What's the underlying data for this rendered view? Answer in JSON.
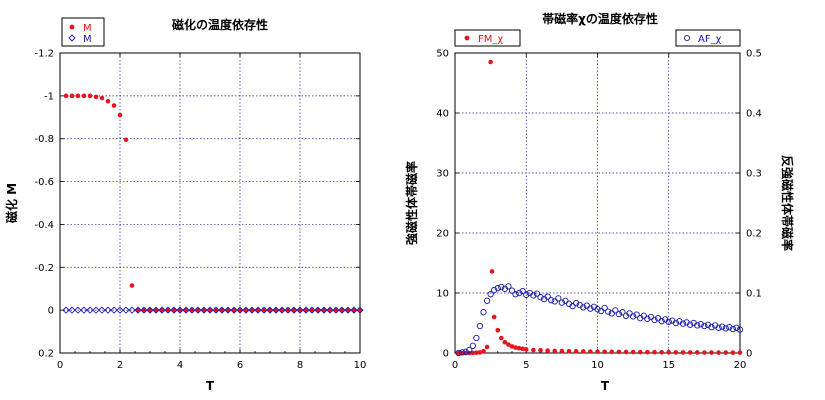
{
  "chart_data": [
    {
      "type": "scatter",
      "title": "磁化の温度依存性",
      "xlabel": "T",
      "ylabel": "磁化 M",
      "xlim": [
        0,
        10
      ],
      "ylim": [
        -1.2,
        0.2
      ],
      "y_inverted": true,
      "xticks": [
        "0",
        "2",
        "4",
        "6",
        "8",
        "10"
      ],
      "yticks": [
        "-1.2",
        "-1",
        "-0.8",
        "-0.6",
        "-0.4",
        "-0.2",
        "0",
        "0.2"
      ],
      "grid": true,
      "legend_position": "top-left",
      "series": [
        {
          "name": "M",
          "marker": "filled-circle",
          "color": "#e8141c",
          "x": [
            0.2,
            0.4,
            0.6,
            0.8,
            1.0,
            1.2,
            1.4,
            1.6,
            1.8,
            2.0,
            2.2,
            2.4,
            2.6,
            2.8,
            3.0,
            3.2,
            3.4,
            3.6,
            3.8,
            4.0,
            4.2,
            4.4,
            4.6,
            4.8,
            5.0,
            5.2,
            5.4,
            5.6,
            5.8,
            6.0,
            6.2,
            6.4,
            6.6,
            6.8,
            7.0,
            7.2,
            7.4,
            7.6,
            7.8,
            8.0,
            8.2,
            8.4,
            8.6,
            8.8,
            9.0,
            9.2,
            9.4,
            9.6,
            9.8,
            10.0
          ],
          "y": [
            -1.0,
            -1.0,
            -1.0,
            -1.0,
            -1.0,
            -0.995,
            -0.99,
            -0.975,
            -0.955,
            -0.91,
            -0.795,
            -0.115,
            0,
            0,
            0,
            0,
            0,
            0,
            0,
            0,
            0,
            0,
            0,
            0,
            0,
            0,
            0,
            0,
            0,
            0,
            0,
            0,
            0,
            0,
            0,
            0,
            0,
            0,
            0,
            0,
            0,
            0,
            0,
            0,
            0,
            0,
            0,
            0,
            0,
            0
          ]
        },
        {
          "name": "M",
          "marker": "open-diamond",
          "color": "#1a1aa8",
          "x": [
            0.2,
            0.4,
            0.6,
            0.8,
            1.0,
            1.2,
            1.4,
            1.6,
            1.8,
            2.0,
            2.2,
            2.4,
            2.6,
            2.8,
            3.0,
            3.2,
            3.4,
            3.6,
            3.8,
            4.0,
            4.2,
            4.4,
            4.6,
            4.8,
            5.0,
            5.2,
            5.4,
            5.6,
            5.8,
            6.0,
            6.2,
            6.4,
            6.6,
            6.8,
            7.0,
            7.2,
            7.4,
            7.6,
            7.8,
            8.0,
            8.2,
            8.4,
            8.6,
            8.8,
            9.0,
            9.2,
            9.4,
            9.6,
            9.8,
            10.0
          ],
          "y": [
            0,
            0,
            0,
            0,
            0,
            0,
            0,
            0,
            0,
            0,
            0,
            0,
            0,
            0,
            0,
            0,
            0,
            0,
            0,
            0,
            0,
            0,
            0,
            0,
            0,
            0,
            0,
            0,
            0,
            0,
            0,
            0,
            0,
            0,
            0,
            0,
            0,
            0,
            0,
            0,
            0,
            0,
            0,
            0,
            0,
            0,
            0,
            0,
            0,
            0
          ]
        }
      ]
    },
    {
      "type": "scatter",
      "title": "帯磁率χの温度依存性",
      "xlabel": "T",
      "ylabel": "強磁性体帯磁率",
      "y2label": "反強磁性体帯磁率",
      "xlim": [
        0,
        20
      ],
      "ylim": [
        0,
        50
      ],
      "y2lim": [
        0,
        0.5
      ],
      "xticks": [
        "0",
        "5",
        "10",
        "15",
        "20"
      ],
      "yticks": [
        "0",
        "10",
        "20",
        "30",
        "40",
        "50"
      ],
      "y2ticks": [
        "0",
        "0.1",
        "0.2",
        "0.3",
        "0.4",
        "0.5"
      ],
      "grid": true,
      "legend_position": "top-left and top-right",
      "series": [
        {
          "name": "FM_χ",
          "axis": "left",
          "marker": "filled-circle",
          "color": "#e8141c",
          "x": [
            0.25,
            0.5,
            0.75,
            1.0,
            1.25,
            1.5,
            1.75,
            2.0,
            2.25,
            2.5,
            2.6,
            2.75,
            3.0,
            3.25,
            3.5,
            3.75,
            4.0,
            4.25,
            4.5,
            4.75,
            5.0,
            5.5,
            6.0,
            6.5,
            7.0,
            7.5,
            8.0,
            8.5,
            9.0,
            9.5,
            10.0,
            10.5,
            11.0,
            11.5,
            12.0,
            12.5,
            13.0,
            13.5,
            14.0,
            14.5,
            15.0,
            15.5,
            16.0,
            16.5,
            17.0,
            17.5,
            18.0,
            18.5,
            19.0,
            19.5,
            20.0
          ],
          "y": [
            0,
            0,
            0,
            0,
            0.02,
            0.05,
            0.1,
            0.3,
            1.0,
            48.5,
            13.6,
            6.0,
            3.8,
            2.5,
            1.8,
            1.4,
            1.1,
            0.9,
            0.8,
            0.7,
            0.6,
            0.5,
            0.45,
            0.4,
            0.35,
            0.32,
            0.3,
            0.28,
            0.26,
            0.24,
            0.22,
            0.2,
            0.19,
            0.18,
            0.17,
            0.16,
            0.15,
            0.14,
            0.13,
            0.12,
            0.11,
            0.1,
            0.1,
            0.09,
            0.09,
            0.08,
            0.08,
            0.07,
            0.07,
            0.06,
            0.06
          ]
        },
        {
          "name": "AF_χ",
          "axis": "right",
          "marker": "open-circle",
          "color": "#1a1aa8",
          "x": [
            0.25,
            0.5,
            0.75,
            1.0,
            1.25,
            1.5,
            1.75,
            2.0,
            2.25,
            2.5,
            2.75,
            3.0,
            3.25,
            3.5,
            3.75,
            4.0,
            4.25,
            4.5,
            4.75,
            5.0,
            5.25,
            5.5,
            5.75,
            6.0,
            6.25,
            6.5,
            6.75,
            7.0,
            7.25,
            7.5,
            7.75,
            8.0,
            8.25,
            8.5,
            8.75,
            9.0,
            9.25,
            9.5,
            9.75,
            10.0,
            10.25,
            10.5,
            10.75,
            11.0,
            11.25,
            11.5,
            11.75,
            12.0,
            12.25,
            12.5,
            12.75,
            13.0,
            13.25,
            13.5,
            13.75,
            14.0,
            14.25,
            14.5,
            14.75,
            15.0,
            15.25,
            15.5,
            15.75,
            16.0,
            16.25,
            16.5,
            16.75,
            17.0,
            17.25,
            17.5,
            17.75,
            18.0,
            18.25,
            18.5,
            18.75,
            19.0,
            19.25,
            19.5,
            19.75,
            20.0
          ],
          "y": [
            0,
            0.001,
            0.002,
            0.005,
            0.012,
            0.025,
            0.045,
            0.068,
            0.087,
            0.098,
            0.105,
            0.108,
            0.11,
            0.107,
            0.111,
            0.104,
            0.098,
            0.1,
            0.103,
            0.097,
            0.1,
            0.096,
            0.099,
            0.093,
            0.09,
            0.094,
            0.088,
            0.086,
            0.091,
            0.084,
            0.087,
            0.082,
            0.078,
            0.083,
            0.08,
            0.076,
            0.079,
            0.074,
            0.077,
            0.073,
            0.07,
            0.075,
            0.069,
            0.066,
            0.071,
            0.065,
            0.068,
            0.062,
            0.066,
            0.061,
            0.064,
            0.058,
            0.062,
            0.057,
            0.06,
            0.055,
            0.058,
            0.053,
            0.056,
            0.052,
            0.054,
            0.05,
            0.053,
            0.049,
            0.051,
            0.047,
            0.05,
            0.046,
            0.048,
            0.045,
            0.047,
            0.043,
            0.046,
            0.042,
            0.044,
            0.041,
            0.043,
            0.04,
            0.042,
            0.039
          ]
        }
      ]
    }
  ]
}
